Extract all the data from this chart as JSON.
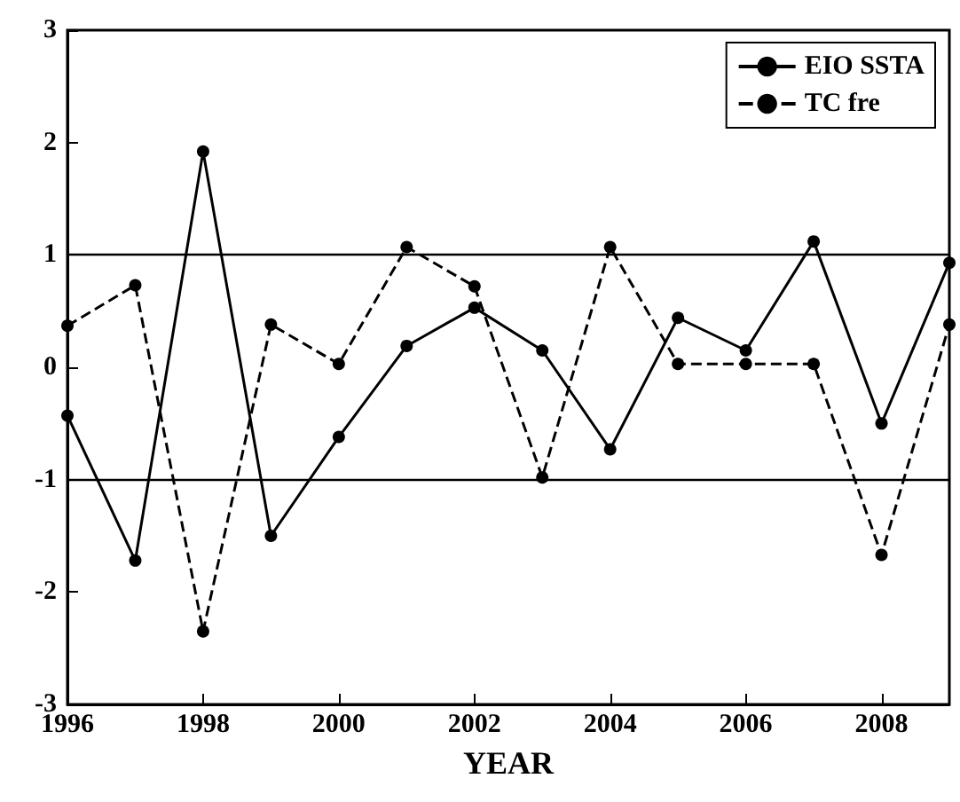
{
  "chart_data": {
    "type": "line",
    "xlabel": "YEAR",
    "x": [
      1996,
      1997,
      1998,
      1999,
      2000,
      2001,
      2002,
      2003,
      2004,
      2005,
      2006,
      2007,
      2008,
      2009
    ],
    "series": [
      {
        "name": "EIO SSTA",
        "color": "#000000",
        "line_style": "solid",
        "values": [
          -0.43,
          -1.72,
          1.92,
          -1.5,
          -0.62,
          0.19,
          0.53,
          0.15,
          -0.73,
          0.44,
          0.15,
          1.12,
          -0.5,
          0.93
        ]
      },
      {
        "name": "TC fre",
        "color": "#000000",
        "line_style": "dashed",
        "values": [
          0.37,
          0.73,
          -2.35,
          0.38,
          0.03,
          1.07,
          0.72,
          -0.98,
          1.07,
          0.03,
          0.03,
          0.03,
          -1.67,
          0.38
        ]
      }
    ],
    "xlim": [
      1996,
      2009
    ],
    "xticks": [
      1996,
      1998,
      2000,
      2002,
      2004,
      2006,
      2008
    ],
    "ylim": [
      -3,
      3
    ],
    "yticks": [
      -3,
      -2,
      -1,
      0,
      1,
      2,
      3
    ],
    "ref_lines": [
      {
        "axis": "y",
        "value": 1,
        "color": "#000000"
      },
      {
        "axis": "y",
        "value": -1,
        "color": "#000000"
      }
    ],
    "grid": false,
    "legend": "top right",
    "marker": "circle"
  }
}
